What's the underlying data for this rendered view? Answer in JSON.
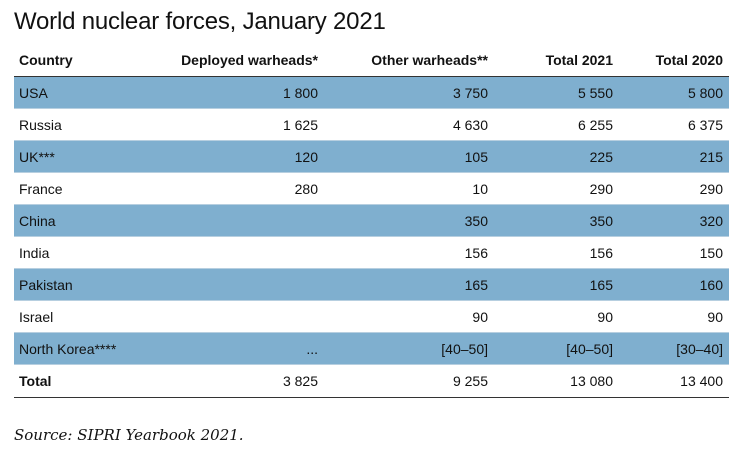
{
  "chart_data": {
    "type": "table",
    "title": "World nuclear forces, January 2021",
    "columns": [
      "Country",
      "Deployed warheads*",
      "Other warheads**",
      "Total 2021",
      "Total 2020"
    ],
    "rows": [
      {
        "country": "USA",
        "deployed": "1 800",
        "other": "3 750",
        "total2021": "5 550",
        "total2020": "5 800"
      },
      {
        "country": "Russia",
        "deployed": "1 625",
        "other": "4 630",
        "total2021": "6 255",
        "total2020": "6 375"
      },
      {
        "country": "UK***",
        "deployed": "120",
        "other": "105",
        "total2021": "225",
        "total2020": "215"
      },
      {
        "country": "France",
        "deployed": "280",
        "other": "10",
        "total2021": "290",
        "total2020": "290"
      },
      {
        "country": "China",
        "deployed": "",
        "other": "350",
        "total2021": "350",
        "total2020": "320"
      },
      {
        "country": "India",
        "deployed": "",
        "other": "156",
        "total2021": "156",
        "total2020": "150"
      },
      {
        "country": "Pakistan",
        "deployed": "",
        "other": "165",
        "total2021": "165",
        "total2020": "160"
      },
      {
        "country": "Israel",
        "deployed": "",
        "other": "90",
        "total2021": "90",
        "total2020": "90"
      },
      {
        "country": "North Korea****",
        "deployed": "...",
        "other": "[40–50]",
        "total2021": "[40–50]",
        "total2020": "[30–40]"
      },
      {
        "country": "Total",
        "deployed": "3 825",
        "other": "9 255",
        "total2021": "13 080",
        "total2020": "13 400"
      }
    ],
    "source": "Source: SIPRI Yearbook 2021.",
    "shade_color": "#7fafcf"
  }
}
